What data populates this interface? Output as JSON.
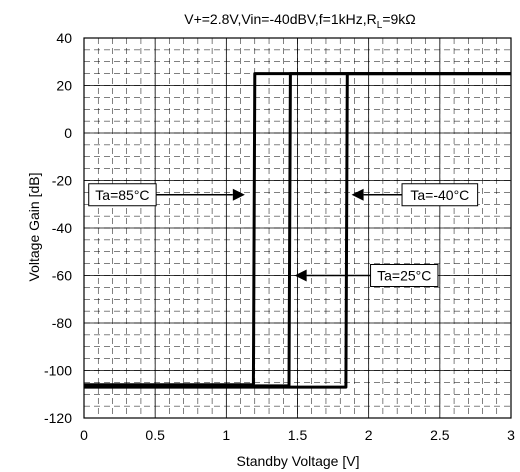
{
  "chart_data": {
    "type": "line",
    "title_parts": {
      "pre": "V+=2.8V,Vin=-40dBV,f=1kHz,R",
      "sub": "L",
      "post": "=9kΩ"
    },
    "xlabel": "Standby Voltage  [V]",
    "ylabel": "Voltage Gain [dB]",
    "xlim": [
      0,
      3
    ],
    "ylim": [
      -120,
      40
    ],
    "x_ticks": [
      "0",
      "0.5",
      "1",
      "1.5",
      "2",
      "2.5",
      "3"
    ],
    "y_ticks": [
      "40",
      "20",
      "0",
      "-20",
      "-40",
      "-60",
      "-80",
      "-100",
      "-120"
    ],
    "grid": true,
    "series": [
      {
        "name": "Ta=85°C",
        "x": [
          0,
          0.5,
          1.0,
          1.18,
          1.19,
          1.2,
          1.22,
          1.4,
          1.8,
          3.0
        ],
        "y": [
          -106,
          -106,
          -106,
          -106,
          -106,
          25,
          25,
          25,
          25,
          25
        ]
      },
      {
        "name": "Ta=25°C",
        "x": [
          0,
          0.5,
          1.0,
          1.2,
          1.44,
          1.45,
          1.46,
          1.48,
          2.0,
          3.0
        ],
        "y": [
          -106.5,
          -106.5,
          -106.5,
          -106.5,
          -106.5,
          25,
          25,
          25,
          25,
          25
        ]
      },
      {
        "name": "Ta=-40°C",
        "x": [
          0,
          0.5,
          1.0,
          1.5,
          1.84,
          1.85,
          1.86,
          1.87,
          2.5,
          3.0
        ],
        "y": [
          -107,
          -107,
          -107,
          -107,
          -107,
          25,
          25,
          25,
          25,
          25
        ]
      }
    ],
    "annotations": [
      {
        "text": "Ta=85°C",
        "box_x": 0.27,
        "box_y": -26,
        "arrow_to_x": 1.13,
        "arrow_to_y": -26
      },
      {
        "text": "Ta=-40°C",
        "box_x": 2.5,
        "box_y": -26,
        "arrow_to_x": 1.88,
        "arrow_to_y": -26
      },
      {
        "text": "Ta=25°C",
        "box_x": 2.25,
        "box_y": -60,
        "arrow_to_x": 1.48,
        "arrow_to_y": -60
      }
    ]
  }
}
